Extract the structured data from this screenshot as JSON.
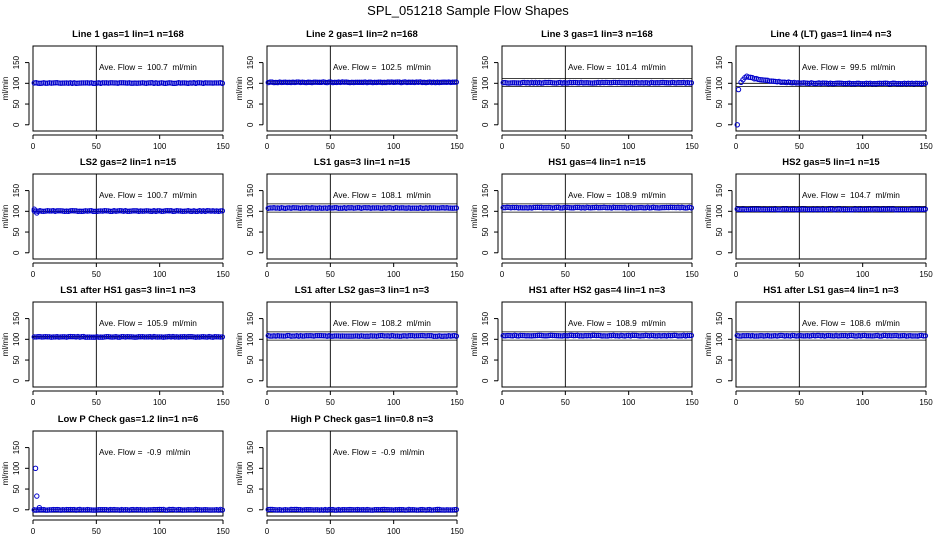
{
  "page_title": "SPL_051218  Sample Flow Shapes",
  "ylabel": "ml/min",
  "colors": {
    "points": "#0000cc",
    "axes": "#000000",
    "background": "#ffffff"
  },
  "axes_defaults": {
    "xlim": [
      0,
      150
    ],
    "xticks": [
      0,
      50,
      100,
      150
    ],
    "ylim": [
      -15,
      190
    ],
    "yticks": [
      0,
      50,
      100,
      150
    ],
    "vline_x": 50
  },
  "chart_data": [
    {
      "type": "scatter",
      "title": "Line 1 gas=1 lin=1 n=168",
      "annotation": "Ave. Flow =  100.7  ml/min",
      "ref_lines": [],
      "points": [],
      "pattern": {
        "kind": "flat",
        "level": 100.7
      }
    },
    {
      "type": "scatter",
      "title": "Line 2 gas=1 lin=2 n=168",
      "annotation": "Ave. Flow =  102.5  ml/min",
      "ref_lines": [
        100,
        105
      ],
      "points": [],
      "pattern": {
        "kind": "flat",
        "level": 102.5
      }
    },
    {
      "type": "scatter",
      "title": "Line 3 gas=1 lin=3 n=168",
      "annotation": "Ave. Flow =  101.4  ml/min",
      "ref_lines": [
        92,
        112
      ],
      "points": [],
      "pattern": {
        "kind": "flat",
        "level": 101.4
      }
    },
    {
      "type": "scatter",
      "title": "Line 4 (LT) gas=1 lin=4 n=3",
      "annotation": "Ave. Flow =  99.5  ml/min",
      "ref_lines": [
        92,
        100
      ],
      "points": [
        [
          1,
          0
        ],
        [
          2,
          85
        ]
      ],
      "pattern": {
        "kind": "overshoot",
        "level": 99.5,
        "peak": 117,
        "peak_x": 8
      }
    },
    {
      "type": "scatter",
      "title": "LS2 gas=2 lin=1 n=15",
      "annotation": "Ave. Flow =  100.7  ml/min",
      "ref_lines": [
        100,
        100
      ],
      "points": [
        [
          1,
          105
        ],
        [
          3,
          96
        ]
      ],
      "pattern": {
        "kind": "flat",
        "level": 100.7
      }
    },
    {
      "type": "scatter",
      "title": "LS1 gas=3 lin=1 n=15",
      "annotation": "Ave. Flow =  108.1  ml/min",
      "ref_lines": [
        98,
        118
      ],
      "points": [],
      "pattern": {
        "kind": "flat",
        "level": 108.1
      }
    },
    {
      "type": "scatter",
      "title": "HS1 gas=4 lin=1 n=15",
      "annotation": "Ave. Flow =  108.9  ml/min",
      "ref_lines": [
        98,
        118
      ],
      "points": [],
      "pattern": {
        "kind": "flat",
        "level": 108.9
      }
    },
    {
      "type": "scatter",
      "title": "HS2 gas=5 lin=1 n=15",
      "annotation": "Ave. Flow =  104.7  ml/min",
      "ref_lines": [
        98,
        112
      ],
      "points": [],
      "pattern": {
        "kind": "flat",
        "level": 104.7
      }
    },
    {
      "type": "scatter",
      "title": "LS1 after HS1 gas=3 lin=1 n=3",
      "annotation": "Ave. Flow =  105.9  ml/min",
      "ref_lines": [
        105,
        107
      ],
      "points": [],
      "pattern": {
        "kind": "flat",
        "level": 105.9
      }
    },
    {
      "type": "scatter",
      "title": "LS1 after LS2 gas=3 lin=1 n=3",
      "annotation": "Ave. Flow =  108.2  ml/min",
      "ref_lines": [
        98,
        118
      ],
      "points": [],
      "pattern": {
        "kind": "flat",
        "level": 108.2
      }
    },
    {
      "type": "scatter",
      "title": "HS1 after HS2 gas=4 lin=1 n=3",
      "annotation": "Ave. Flow =  108.9  ml/min",
      "ref_lines": [
        98,
        118
      ],
      "points": [],
      "pattern": {
        "kind": "flat",
        "level": 108.9
      }
    },
    {
      "type": "scatter",
      "title": "HS1 after LS1 gas=4 lin=1 n=3",
      "annotation": "Ave. Flow =  108.6  ml/min",
      "ref_lines": [
        98,
        118
      ],
      "points": [],
      "pattern": {
        "kind": "flat",
        "level": 108.6
      }
    },
    {
      "type": "scatter",
      "title": "Low P Check gas=1.2 lin=1 n=6",
      "annotation": "Ave. Flow =  -0.9  ml/min",
      "ref_lines": [
        -6,
        0
      ],
      "points": [
        [
          2,
          100
        ],
        [
          3,
          33
        ],
        [
          5,
          5
        ]
      ],
      "pattern": {
        "kind": "flat",
        "level": 0
      }
    },
    {
      "type": "scatter",
      "title": "High P Check gas=1 lin=0.8 n=3",
      "annotation": "Ave. Flow =  -0.9  ml/min",
      "ref_lines": [
        -6,
        0
      ],
      "points": [],
      "pattern": {
        "kind": "flat",
        "level": 0
      }
    }
  ]
}
